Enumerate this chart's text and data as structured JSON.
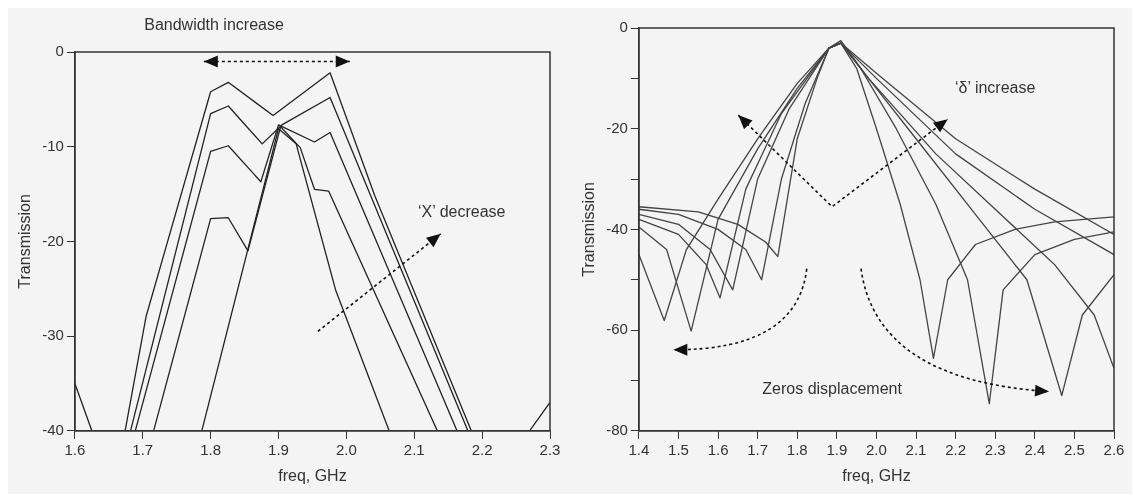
{
  "chart_data": [
    {
      "type": "line",
      "xlabel": "freq, GHz",
      "ylabel": "Transmission",
      "xlim": [
        1.6,
        2.3
      ],
      "ylim": [
        -40,
        0
      ],
      "xticks": [
        1.6,
        1.7,
        1.8,
        1.9,
        {
          "value": 2,
          "label": "2.0"
        },
        2.1,
        2.2,
        2.3
      ],
      "yticks": [
        0,
        -10,
        -20,
        -30,
        -40
      ],
      "grid": false,
      "legend": false,
      "marker": "none",
      "line_style": "solid",
      "annotations": [
        "Bandwidth increase",
        "‘X’ decrease"
      ],
      "series": [
        {
          "color": "#222222",
          "x": [
            1.6,
            1.625,
            1.674,
            1.705,
            1.8,
            1.826,
            1.892,
            1.976,
            2.042,
            2.184,
            2.27,
            2.3
          ],
          "values": [
            -35,
            -40,
            -40,
            -27.9,
            -4.2,
            -3.2,
            -6.7,
            -2.2,
            -15.2,
            -40,
            -40,
            -37
          ]
        },
        {
          "color": "#222222",
          "x": [
            1.682,
            1.8,
            1.826,
            1.876,
            1.905,
            1.976,
            2.179
          ],
          "values": [
            -40,
            -6.5,
            -5.7,
            -9.7,
            -7.7,
            -4.8,
            -40
          ]
        },
        {
          "color": "#222222",
          "x": [
            1.689,
            1.8,
            1.826,
            1.874,
            1.9,
            1.953,
            1.976,
            2.163
          ],
          "values": [
            -40,
            -10.5,
            -9.9,
            -13.7,
            -7.7,
            -9.5,
            -8.5,
            -40
          ]
        },
        {
          "color": "#222222",
          "x": [
            1.716,
            1.8,
            1.826,
            1.855,
            1.903,
            1.932,
            1.953,
            1.974,
            2.134
          ],
          "values": [
            -40,
            -17.6,
            -17.5,
            -21,
            -7.9,
            -10.1,
            -14.5,
            -14.7,
            -40
          ]
        },
        {
          "color": "#222222",
          "x": [
            1.787,
            1.9,
            1.926,
            1.984,
            2.063
          ],
          "values": [
            -40,
            -8.1,
            -9.7,
            -25.1,
            -40
          ]
        }
      ]
    },
    {
      "type": "line",
      "xlabel": "freq, GHz",
      "ylabel": "Transmission",
      "xlim": [
        1.4,
        2.6
      ],
      "ylim": [
        -80,
        0
      ],
      "xticks": [
        1.4,
        1.5,
        1.6,
        1.7,
        1.8,
        1.9,
        {
          "value": 2,
          "label": "2.0"
        },
        2.1,
        2.2,
        2.3,
        2.4,
        2.5,
        2.6
      ],
      "yticks": [
        0,
        {
          "value": -10,
          "label": null
        },
        -20,
        {
          "value": -30,
          "label": null
        },
        -40,
        {
          "value": -50,
          "label": null
        },
        -60,
        {
          "value": -70,
          "label": null
        },
        -80
      ],
      "grid": false,
      "legend": false,
      "marker": "none",
      "line_style": "solid",
      "annotations": [
        "‘δ’ increase",
        "Zeros displacement"
      ],
      "series": [
        {
          "color": "#444444",
          "x": [
            1.4,
            1.55,
            1.65,
            1.72,
            1.751,
            1.8,
            1.85,
            1.88,
            1.91,
            1.95,
            2.0,
            2.06,
            2.11,
            2.144,
            2.18,
            2.25,
            2.35,
            2.45,
            2.6
          ],
          "values": [
            -35.5,
            -36.5,
            -39,
            -42.5,
            -45.4,
            -22,
            -10,
            -4,
            -3,
            -8,
            -20,
            -35,
            -50,
            -65.6,
            -50,
            -43,
            -40,
            -38.5,
            -37.5
          ]
        },
        {
          "color": "#444444",
          "x": [
            1.4,
            1.5,
            1.6,
            1.67,
            1.71,
            1.76,
            1.82,
            1.88,
            1.91,
            1.96,
            2.05,
            2.15,
            2.23,
            2.285,
            2.32,
            2.4,
            2.5,
            2.6
          ],
          "values": [
            -36,
            -37,
            -40,
            -44,
            -50,
            -30,
            -15,
            -4,
            -3,
            -8,
            -20,
            -35,
            -50,
            -74.6,
            -52,
            -45,
            -42,
            -40.5
          ]
        },
        {
          "color": "#444444",
          "x": [
            1.4,
            1.5,
            1.58,
            1.637,
            1.7,
            1.78,
            1.88,
            1.91,
            1.97,
            2.1,
            2.25,
            2.38,
            2.468,
            2.52,
            2.6
          ],
          "values": [
            -37,
            -39,
            -44,
            -52,
            -30,
            -16,
            -4,
            -2.5,
            -9,
            -22,
            -37,
            -50,
            -73,
            -57,
            -49
          ]
        },
        {
          "color": "#444444",
          "x": [
            1.4,
            1.5,
            1.57,
            1.605,
            1.67,
            1.76,
            1.88,
            1.91,
            1.98,
            2.15,
            2.3,
            2.45,
            2.55,
            2.6
          ],
          "values": [
            -38,
            -41,
            -47,
            -53.6,
            -32,
            -17,
            -4,
            -3,
            -10,
            -25,
            -36,
            -47,
            -57,
            -67.6
          ]
        },
        {
          "color": "#444444",
          "x": [
            1.4,
            1.47,
            1.532,
            1.6,
            1.7,
            1.8,
            1.88,
            1.91,
            2.0,
            2.2,
            2.4,
            2.6
          ],
          "values": [
            -39.5,
            -44,
            -60.2,
            -38,
            -24,
            -12,
            -4,
            -3,
            -10,
            -25,
            -36,
            -45
          ]
        },
        {
          "color": "#444444",
          "x": [
            1.4,
            1.464,
            1.52,
            1.6,
            1.7,
            1.8,
            1.88,
            1.91,
            2.0,
            2.2,
            2.4,
            2.6
          ],
          "values": [
            -45,
            -58.1,
            -44,
            -34,
            -22,
            -11,
            -4,
            -3,
            -9,
            -22,
            -32,
            -41
          ]
        }
      ]
    }
  ]
}
